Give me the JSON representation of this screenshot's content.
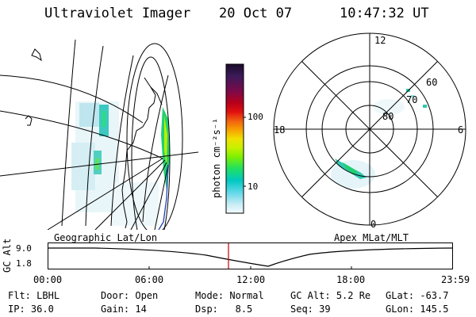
{
  "header": {
    "instrument": "Ultraviolet Imager",
    "date": "20 Oct 07",
    "time": "10:47:32 UT"
  },
  "colorbar": {
    "label": "photon cm⁻²s⁻¹",
    "ticks": [
      {
        "label": "100",
        "value": 100
      },
      {
        "label": "10",
        "value": 10
      }
    ],
    "colors": [
      "#1b0b2a",
      "#3b1a5a",
      "#7a0a4a",
      "#b8001a",
      "#e01010",
      "#f06010",
      "#f8a000",
      "#f0e000",
      "#c8f000",
      "#80f000",
      "#20e060",
      "#00c8c0",
      "#60d8e8",
      "#a8e8f0",
      "#d8f4f8",
      "#f4fcff"
    ]
  },
  "geo_panel": {
    "label": "Geographic Lat/Lon"
  },
  "polar_panel": {
    "label": "Apex MLat/MLT",
    "mlt_labels": [
      "12",
      "18",
      "6",
      "0"
    ],
    "lat_labels": [
      "60",
      "70",
      "80"
    ]
  },
  "altitude_strip": {
    "ylabel": "GC Alt",
    "y_ticks": [
      "9.0",
      "1.8"
    ],
    "x_ticks": [
      "00:00",
      "06:00",
      "12:00",
      "18:00",
      "23:59"
    ],
    "current_marker_time": "10:47"
  },
  "status": {
    "filter": {
      "label": "Flt:",
      "value": "LBHL"
    },
    "ip": {
      "label": "IP:",
      "value": "36.0"
    },
    "door": {
      "label": "Door:",
      "value": "Open"
    },
    "gain": {
      "label": "Gain:",
      "value": "14"
    },
    "mode": {
      "label": "Mode:",
      "value": "Normal"
    },
    "dsp": {
      "label": "Dsp:",
      "value": "8.5"
    },
    "gc_alt": {
      "label": "GC Alt:",
      "value": "5.2 Re"
    },
    "seq": {
      "label": "Seq:",
      "value": "39"
    },
    "glat": {
      "label": "GLat:",
      "value": "-63.7"
    },
    "glon": {
      "label": "GLon:",
      "value": "145.5"
    }
  }
}
